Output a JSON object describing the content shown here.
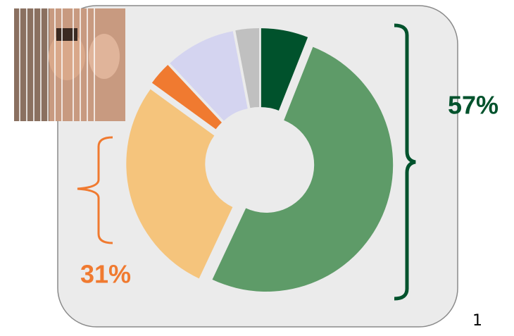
{
  "chart_data": {
    "type": "pie",
    "donut": true,
    "values": [
      6,
      51,
      28,
      3,
      9,
      3
    ],
    "colors": [
      "#00522c",
      "#5e9b68",
      "#f5c47c",
      "#f07a30",
      "#d4d4f0",
      "#c0c0c0"
    ],
    "annotations": [
      {
        "text": "57%",
        "color": "#00522c"
      },
      {
        "text": "31%",
        "color": "#f07a30"
      }
    ]
  },
  "page_number": "1"
}
